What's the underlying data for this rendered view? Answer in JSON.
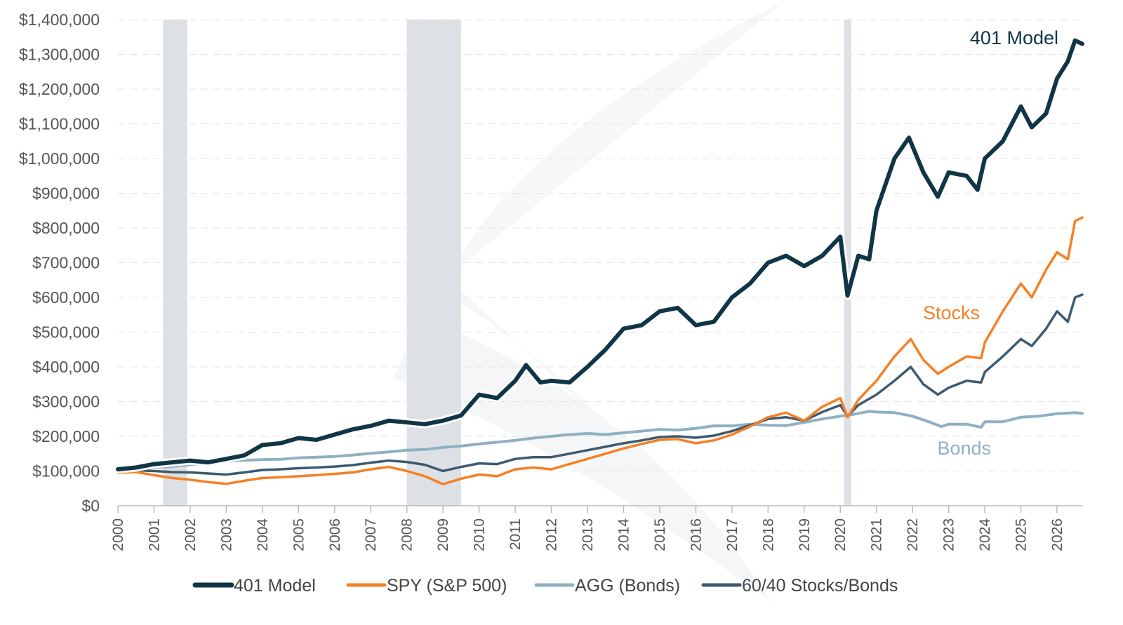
{
  "chart_data": {
    "type": "line",
    "title": "",
    "xlabel": "",
    "ylabel": "",
    "ylim": [
      0,
      1400000
    ],
    "xlim": [
      2000,
      2026.7
    ],
    "x_ticks": [
      "2000",
      "2001",
      "2002",
      "2003",
      "2004",
      "2005",
      "2006",
      "2007",
      "2008",
      "2009",
      "2010",
      "2011",
      "2012",
      "2013",
      "2014",
      "2015",
      "2016",
      "2017",
      "2018",
      "2019",
      "2020",
      "2021",
      "2022",
      "2023",
      "2024",
      "2025",
      "2026"
    ],
    "y_ticks": [
      "$0",
      "$100,000",
      "$200,000",
      "$300,000",
      "$400,000",
      "$500,000",
      "$600,000",
      "$700,000",
      "$800,000",
      "$900,000",
      "$1,000,000",
      "$1,100,000",
      "$1,200,000",
      "$1,300,000",
      "$1,400,000"
    ],
    "grid": "horizontal dashed",
    "legend_position": "bottom",
    "shaded_periods": [
      {
        "start": 2001.25,
        "end": 2001.92
      },
      {
        "start": 2008.0,
        "end": 2009.5
      },
      {
        "start": 2020.1,
        "end": 2020.3
      }
    ],
    "series": [
      {
        "name": "401 Model",
        "end_label": "401 Model",
        "color": "#0f3546",
        "points": [
          [
            2000,
            105000
          ],
          [
            2000.5,
            110000
          ],
          [
            2001,
            120000
          ],
          [
            2001.5,
            125000
          ],
          [
            2002,
            130000
          ],
          [
            2002.5,
            125000
          ],
          [
            2003,
            135000
          ],
          [
            2003.5,
            145000
          ],
          [
            2004,
            175000
          ],
          [
            2004.5,
            180000
          ],
          [
            2005,
            195000
          ],
          [
            2005.5,
            190000
          ],
          [
            2006,
            205000
          ],
          [
            2006.5,
            220000
          ],
          [
            2007,
            230000
          ],
          [
            2007.5,
            245000
          ],
          [
            2008,
            240000
          ],
          [
            2008.5,
            235000
          ],
          [
            2009,
            245000
          ],
          [
            2009.5,
            260000
          ],
          [
            2010,
            320000
          ],
          [
            2010.5,
            310000
          ],
          [
            2011,
            360000
          ],
          [
            2011.3,
            405000
          ],
          [
            2011.7,
            355000
          ],
          [
            2012,
            360000
          ],
          [
            2012.5,
            355000
          ],
          [
            2013,
            400000
          ],
          [
            2013.5,
            450000
          ],
          [
            2014,
            510000
          ],
          [
            2014.5,
            520000
          ],
          [
            2015,
            560000
          ],
          [
            2015.5,
            570000
          ],
          [
            2016,
            520000
          ],
          [
            2016.5,
            530000
          ],
          [
            2017,
            600000
          ],
          [
            2017.5,
            640000
          ],
          [
            2018,
            700000
          ],
          [
            2018.5,
            720000
          ],
          [
            2019,
            690000
          ],
          [
            2019.5,
            720000
          ],
          [
            2020,
            775000
          ],
          [
            2020.2,
            605000
          ],
          [
            2020.5,
            720000
          ],
          [
            2020.8,
            710000
          ],
          [
            2021,
            850000
          ],
          [
            2021.5,
            1000000
          ],
          [
            2021.9,
            1060000
          ],
          [
            2022.3,
            960000
          ],
          [
            2022.7,
            890000
          ],
          [
            2023,
            960000
          ],
          [
            2023.5,
            950000
          ],
          [
            2023.8,
            910000
          ],
          [
            2024,
            1000000
          ],
          [
            2024.5,
            1050000
          ],
          [
            2025,
            1150000
          ],
          [
            2025.3,
            1090000
          ],
          [
            2025.7,
            1130000
          ],
          [
            2026,
            1230000
          ],
          [
            2026.3,
            1280000
          ],
          [
            2026.5,
            1340000
          ],
          [
            2026.7,
            1330000
          ]
        ]
      },
      {
        "name": "SPY (S&P 500)",
        "end_label": "Stocks",
        "color": "#f58025",
        "points": [
          [
            2000,
            95000
          ],
          [
            2000.5,
            97000
          ],
          [
            2001,
            88000
          ],
          [
            2001.5,
            80000
          ],
          [
            2002,
            75000
          ],
          [
            2002.5,
            68000
          ],
          [
            2003,
            63000
          ],
          [
            2003.5,
            72000
          ],
          [
            2004,
            80000
          ],
          [
            2004.5,
            82000
          ],
          [
            2005,
            85000
          ],
          [
            2005.5,
            88000
          ],
          [
            2006,
            92000
          ],
          [
            2006.5,
            96000
          ],
          [
            2007,
            105000
          ],
          [
            2007.5,
            112000
          ],
          [
            2008,
            100000
          ],
          [
            2008.5,
            85000
          ],
          [
            2009,
            62000
          ],
          [
            2009.5,
            78000
          ],
          [
            2010,
            90000
          ],
          [
            2010.5,
            85000
          ],
          [
            2011,
            105000
          ],
          [
            2011.5,
            110000
          ],
          [
            2012,
            105000
          ],
          [
            2012.5,
            120000
          ],
          [
            2013,
            135000
          ],
          [
            2013.5,
            150000
          ],
          [
            2014,
            165000
          ],
          [
            2014.5,
            178000
          ],
          [
            2015,
            190000
          ],
          [
            2015.5,
            192000
          ],
          [
            2016,
            180000
          ],
          [
            2016.5,
            188000
          ],
          [
            2017,
            205000
          ],
          [
            2017.5,
            228000
          ],
          [
            2018,
            255000
          ],
          [
            2018.5,
            268000
          ],
          [
            2019,
            245000
          ],
          [
            2019.5,
            285000
          ],
          [
            2020,
            310000
          ],
          [
            2020.2,
            255000
          ],
          [
            2020.5,
            305000
          ],
          [
            2021,
            360000
          ],
          [
            2021.5,
            430000
          ],
          [
            2021.95,
            480000
          ],
          [
            2022.3,
            420000
          ],
          [
            2022.7,
            380000
          ],
          [
            2023,
            400000
          ],
          [
            2023.5,
            430000
          ],
          [
            2023.9,
            425000
          ],
          [
            2024,
            470000
          ],
          [
            2024.5,
            560000
          ],
          [
            2025,
            640000
          ],
          [
            2025.3,
            600000
          ],
          [
            2025.7,
            680000
          ],
          [
            2026,
            730000
          ],
          [
            2026.3,
            710000
          ],
          [
            2026.5,
            820000
          ],
          [
            2026.7,
            830000
          ]
        ]
      },
      {
        "name": "AGG (Bonds)",
        "end_label": "Bonds",
        "color": "#8fb0c3",
        "points": [
          [
            2000,
            100000
          ],
          [
            2000.5,
            103000
          ],
          [
            2001,
            110000
          ],
          [
            2001.5,
            113000
          ],
          [
            2002,
            118000
          ],
          [
            2002.5,
            123000
          ],
          [
            2003,
            128000
          ],
          [
            2003.5,
            131000
          ],
          [
            2004,
            133000
          ],
          [
            2004.5,
            134000
          ],
          [
            2005,
            138000
          ],
          [
            2005.5,
            140000
          ],
          [
            2006,
            142000
          ],
          [
            2006.5,
            146000
          ],
          [
            2007,
            151000
          ],
          [
            2007.5,
            155000
          ],
          [
            2008,
            160000
          ],
          [
            2008.5,
            162000
          ],
          [
            2009,
            168000
          ],
          [
            2009.5,
            172000
          ],
          [
            2010,
            178000
          ],
          [
            2010.5,
            183000
          ],
          [
            2011,
            188000
          ],
          [
            2011.5,
            195000
          ],
          [
            2012,
            200000
          ],
          [
            2012.5,
            205000
          ],
          [
            2013,
            208000
          ],
          [
            2013.5,
            205000
          ],
          [
            2014,
            210000
          ],
          [
            2014.5,
            215000
          ],
          [
            2015,
            220000
          ],
          [
            2015.5,
            218000
          ],
          [
            2016,
            223000
          ],
          [
            2016.5,
            230000
          ],
          [
            2017,
            230000
          ],
          [
            2017.5,
            235000
          ],
          [
            2018,
            232000
          ],
          [
            2018.5,
            231000
          ],
          [
            2019,
            240000
          ],
          [
            2019.5,
            250000
          ],
          [
            2020,
            258000
          ],
          [
            2020.3,
            262000
          ],
          [
            2020.8,
            272000
          ],
          [
            2021,
            270000
          ],
          [
            2021.5,
            268000
          ],
          [
            2022,
            258000
          ],
          [
            2022.5,
            240000
          ],
          [
            2022.8,
            228000
          ],
          [
            2023,
            235000
          ],
          [
            2023.5,
            235000
          ],
          [
            2023.9,
            226000
          ],
          [
            2024,
            242000
          ],
          [
            2024.5,
            242000
          ],
          [
            2025,
            255000
          ],
          [
            2025.5,
            258000
          ],
          [
            2026,
            265000
          ],
          [
            2026.5,
            268000
          ],
          [
            2026.7,
            266000
          ]
        ]
      },
      {
        "name": "60/40 Stocks/Bonds",
        "end_label": "",
        "color": "#3d5a70",
        "points": [
          [
            2000,
            100000
          ],
          [
            2000.5,
            102000
          ],
          [
            2001,
            100000
          ],
          [
            2001.5,
            97000
          ],
          [
            2002,
            96000
          ],
          [
            2002.5,
            93000
          ],
          [
            2003,
            90000
          ],
          [
            2003.5,
            96000
          ],
          [
            2004,
            103000
          ],
          [
            2004.5,
            105000
          ],
          [
            2005,
            108000
          ],
          [
            2005.5,
            110000
          ],
          [
            2006,
            113000
          ],
          [
            2006.5,
            117000
          ],
          [
            2007,
            124000
          ],
          [
            2007.5,
            130000
          ],
          [
            2008,
            126000
          ],
          [
            2008.5,
            118000
          ],
          [
            2009,
            100000
          ],
          [
            2009.5,
            112000
          ],
          [
            2010,
            122000
          ],
          [
            2010.5,
            120000
          ],
          [
            2011,
            135000
          ],
          [
            2011.5,
            140000
          ],
          [
            2012,
            140000
          ],
          [
            2012.5,
            150000
          ],
          [
            2013,
            160000
          ],
          [
            2013.5,
            170000
          ],
          [
            2014,
            180000
          ],
          [
            2014.5,
            188000
          ],
          [
            2015,
            198000
          ],
          [
            2015.5,
            200000
          ],
          [
            2016,
            196000
          ],
          [
            2016.5,
            202000
          ],
          [
            2017,
            215000
          ],
          [
            2017.5,
            232000
          ],
          [
            2018,
            250000
          ],
          [
            2018.5,
            255000
          ],
          [
            2019,
            245000
          ],
          [
            2019.5,
            270000
          ],
          [
            2020,
            290000
          ],
          [
            2020.2,
            258000
          ],
          [
            2020.5,
            290000
          ],
          [
            2021,
            320000
          ],
          [
            2021.5,
            360000
          ],
          [
            2021.95,
            400000
          ],
          [
            2022.3,
            350000
          ],
          [
            2022.7,
            320000
          ],
          [
            2023,
            340000
          ],
          [
            2023.5,
            360000
          ],
          [
            2023.9,
            355000
          ],
          [
            2024,
            385000
          ],
          [
            2024.5,
            430000
          ],
          [
            2025,
            480000
          ],
          [
            2025.3,
            460000
          ],
          [
            2025.7,
            510000
          ],
          [
            2026,
            560000
          ],
          [
            2026.3,
            530000
          ],
          [
            2026.5,
            600000
          ],
          [
            2026.7,
            608000
          ]
        ]
      }
    ]
  }
}
